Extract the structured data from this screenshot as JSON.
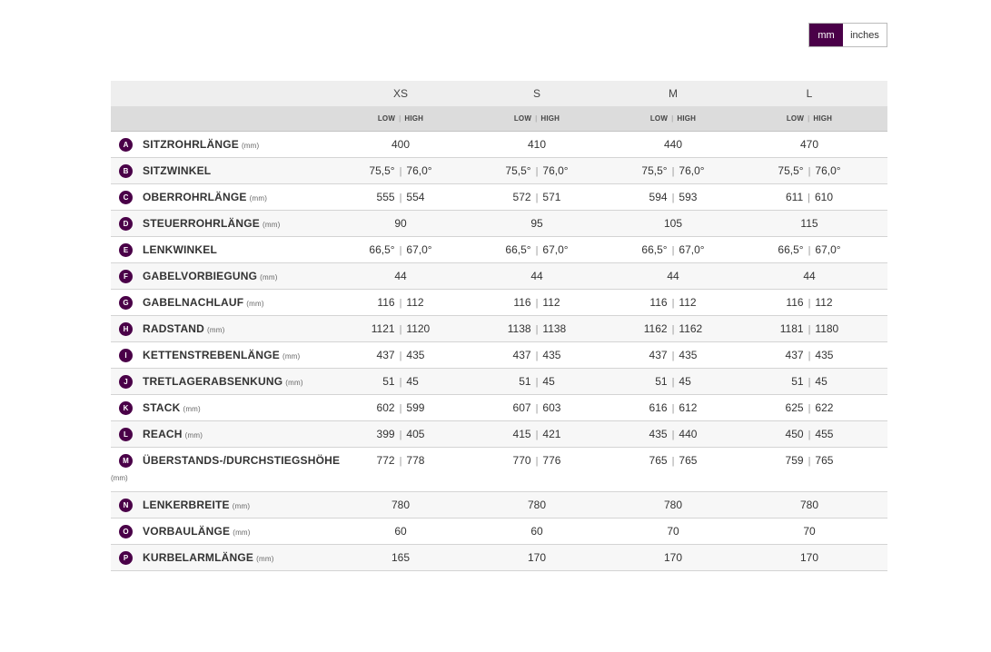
{
  "unit_toggle": {
    "mm": "mm",
    "inches": "inches"
  },
  "sizes": [
    "XS",
    "S",
    "M",
    "L"
  ],
  "low_label": "LOW",
  "high_label": "HIGH",
  "separator": "|",
  "rows": [
    {
      "letter": "A",
      "name": "SITZROHRLÄNGE",
      "unit": "(mm)",
      "values": [
        [
          "400"
        ],
        [
          "410"
        ],
        [
          "440"
        ],
        [
          "470"
        ]
      ]
    },
    {
      "letter": "B",
      "name": "SITZWINKEL",
      "unit": "",
      "values": [
        [
          "75,5°",
          "76,0°"
        ],
        [
          "75,5°",
          "76,0°"
        ],
        [
          "75,5°",
          "76,0°"
        ],
        [
          "75,5°",
          "76,0°"
        ]
      ]
    },
    {
      "letter": "C",
      "name": "OBERROHRLÄNGE",
      "unit": "(mm)",
      "values": [
        [
          "555",
          "554"
        ],
        [
          "572",
          "571"
        ],
        [
          "594",
          "593"
        ],
        [
          "611",
          "610"
        ]
      ]
    },
    {
      "letter": "D",
      "name": "STEUERROHRLÄNGE",
      "unit": "(mm)",
      "values": [
        [
          "90"
        ],
        [
          "95"
        ],
        [
          "105"
        ],
        [
          "115"
        ]
      ]
    },
    {
      "letter": "E",
      "name": "LENKWINKEL",
      "unit": "",
      "values": [
        [
          "66,5°",
          "67,0°"
        ],
        [
          "66,5°",
          "67,0°"
        ],
        [
          "66,5°",
          "67,0°"
        ],
        [
          "66,5°",
          "67,0°"
        ]
      ]
    },
    {
      "letter": "F",
      "name": "GABELVORBIEGUNG",
      "unit": "(mm)",
      "values": [
        [
          "44"
        ],
        [
          "44"
        ],
        [
          "44"
        ],
        [
          "44"
        ]
      ]
    },
    {
      "letter": "G",
      "name": "GABELNACHLAUF",
      "unit": "(mm)",
      "values": [
        [
          "116",
          "112"
        ],
        [
          "116",
          "112"
        ],
        [
          "116",
          "112"
        ],
        [
          "116",
          "112"
        ]
      ]
    },
    {
      "letter": "H",
      "name": "RADSTAND",
      "unit": "(mm)",
      "values": [
        [
          "1121",
          "1120"
        ],
        [
          "1138",
          "1138"
        ],
        [
          "1162",
          "1162"
        ],
        [
          "1181",
          "1180"
        ]
      ]
    },
    {
      "letter": "I",
      "name": "KETTENSTREBENLÄNGE",
      "unit": "(mm)",
      "values": [
        [
          "437",
          "435"
        ],
        [
          "437",
          "435"
        ],
        [
          "437",
          "435"
        ],
        [
          "437",
          "435"
        ]
      ]
    },
    {
      "letter": "J",
      "name": "TRETLAGERABSENKUNG",
      "unit": "(mm)",
      "values": [
        [
          "51",
          "45"
        ],
        [
          "51",
          "45"
        ],
        [
          "51",
          "45"
        ],
        [
          "51",
          "45"
        ]
      ]
    },
    {
      "letter": "K",
      "name": "STACK",
      "unit": "(mm)",
      "values": [
        [
          "602",
          "599"
        ],
        [
          "607",
          "603"
        ],
        [
          "616",
          "612"
        ],
        [
          "625",
          "622"
        ]
      ]
    },
    {
      "letter": "L",
      "name": "REACH",
      "unit": "(mm)",
      "values": [
        [
          "399",
          "405"
        ],
        [
          "415",
          "421"
        ],
        [
          "435",
          "440"
        ],
        [
          "450",
          "455"
        ]
      ]
    },
    {
      "letter": "M",
      "name": "ÜBERSTANDS-/DURCHSTIEGSHÖHE",
      "unit": "(mm)",
      "unit_wrapped": true,
      "values": [
        [
          "772",
          "778"
        ],
        [
          "770",
          "776"
        ],
        [
          "765",
          "765"
        ],
        [
          "759",
          "765"
        ]
      ]
    },
    {
      "letter": "N",
      "name": "LENKERBREITE",
      "unit": "(mm)",
      "values": [
        [
          "780"
        ],
        [
          "780"
        ],
        [
          "780"
        ],
        [
          "780"
        ]
      ]
    },
    {
      "letter": "O",
      "name": "VORBAULÄNGE",
      "unit": "(mm)",
      "values": [
        [
          "60"
        ],
        [
          "60"
        ],
        [
          "70"
        ],
        [
          "70"
        ]
      ]
    },
    {
      "letter": "P",
      "name": "KURBELARMLÄNGE",
      "unit": "(mm)",
      "values": [
        [
          "165"
        ],
        [
          "170"
        ],
        [
          "170"
        ],
        [
          "170"
        ]
      ]
    }
  ],
  "colors": {
    "accent": "#4a0048",
    "header_bg": "#eeeeee",
    "subheader_bg": "#dcdcdc"
  }
}
